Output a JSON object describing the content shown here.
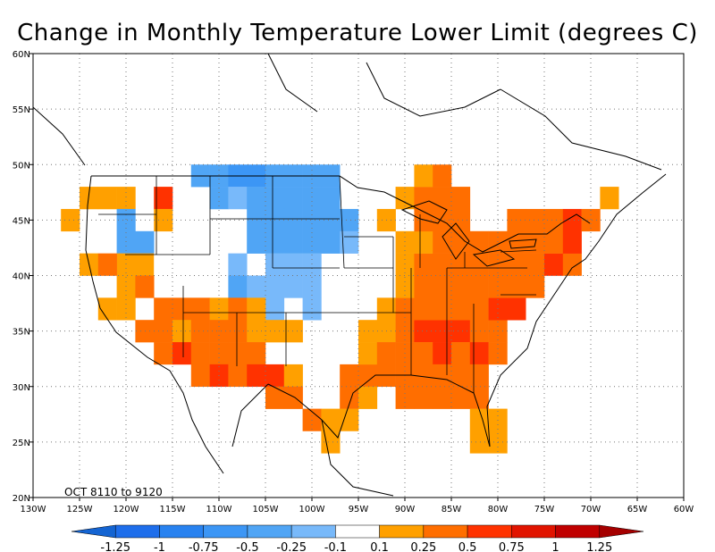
{
  "title": "Change in Monthly Temperature Lower Limit (degrees C)",
  "period_note": "OCT 8110 to 9120",
  "map": {
    "lon_range": [
      -130,
      -60
    ],
    "lat_range": [
      20,
      60
    ],
    "lon_ticks": [
      "130W",
      "125W",
      "120W",
      "115W",
      "110W",
      "105W",
      "100W",
      "95W",
      "90W",
      "85W",
      "80W",
      "75W",
      "70W",
      "65W",
      "60W"
    ],
    "lat_ticks": [
      "20N",
      "25N",
      "30N",
      "35N",
      "40N",
      "45N",
      "50N",
      "55N",
      "60N"
    ],
    "grid": "dotted"
  },
  "colorbar": {
    "labels": [
      "-1.25",
      "-1",
      "-0.75",
      "-0.5",
      "-0.25",
      "-0.1",
      "0.1",
      "0.25",
      "0.5",
      "0.75",
      "1",
      "1.25"
    ],
    "colors": [
      "#1464D2",
      "#1E6EEB",
      "#2882F0",
      "#3C96F5",
      "#50A5F5",
      "#78B9FA",
      "#FFFFFF",
      "#FFA000",
      "#FF6E00",
      "#FF3200",
      "#E11400",
      "#C00000",
      "#A50000"
    ]
  },
  "chart_data": {
    "type": "heatmap",
    "title": "Change in Monthly Temperature Lower Limit (degrees C)",
    "xlabel": "",
    "ylabel": "",
    "xlim": [
      -130,
      -60
    ],
    "ylim": [
      20,
      60
    ],
    "cell_size_deg": 2,
    "colorbar_classes": [
      "-1.25",
      "-1",
      "-0.75",
      "-0.5",
      "-0.25",
      "-0.1",
      "0.1",
      "0.25",
      "0.5",
      "0.75",
      "1",
      "1.25"
    ],
    "cells": [
      {
        "lon": -124,
        "lat": 47,
        "c": 7
      },
      {
        "lon": -122,
        "lat": 47,
        "c": 7
      },
      {
        "lon": -120,
        "lat": 47,
        "c": 7
      },
      {
        "lon": -116,
        "lat": 47,
        "c": 9
      },
      {
        "lon": -126,
        "lat": 45,
        "c": 7
      },
      {
        "lon": -120,
        "lat": 45,
        "c": 4
      },
      {
        "lon": -116,
        "lat": 45,
        "c": 7
      },
      {
        "lon": -120,
        "lat": 43,
        "c": 4
      },
      {
        "lon": -118,
        "lat": 43,
        "c": 4
      },
      {
        "lon": -120,
        "lat": 41,
        "c": 7
      },
      {
        "lon": -118,
        "lat": 41,
        "c": 7
      },
      {
        "lon": -116,
        "lat": 41,
        "c": 6
      },
      {
        "lon": -124,
        "lat": 41,
        "c": 7
      },
      {
        "lon": -122,
        "lat": 41,
        "c": 8
      },
      {
        "lon": -112,
        "lat": 49,
        "c": 4
      },
      {
        "lon": -110,
        "lat": 49,
        "c": 4
      },
      {
        "lon": -108,
        "lat": 49,
        "c": 3
      },
      {
        "lon": -106,
        "lat": 49,
        "c": 3
      },
      {
        "lon": -104,
        "lat": 49,
        "c": 4
      },
      {
        "lon": -102,
        "lat": 49,
        "c": 4
      },
      {
        "lon": -100,
        "lat": 49,
        "c": 4
      },
      {
        "lon": -98,
        "lat": 49,
        "c": 4
      },
      {
        "lon": -110,
        "lat": 47,
        "c": 4
      },
      {
        "lon": -108,
        "lat": 47,
        "c": 5
      },
      {
        "lon": -106,
        "lat": 47,
        "c": 4
      },
      {
        "lon": -104,
        "lat": 47,
        "c": 4
      },
      {
        "lon": -102,
        "lat": 47,
        "c": 4
      },
      {
        "lon": -100,
        "lat": 47,
        "c": 4
      },
      {
        "lon": -98,
        "lat": 47,
        "c": 4
      },
      {
        "lon": -106,
        "lat": 45,
        "c": 4
      },
      {
        "lon": -104,
        "lat": 45,
        "c": 4
      },
      {
        "lon": -102,
        "lat": 45,
        "c": 4
      },
      {
        "lon": -100,
        "lat": 45,
        "c": 4
      },
      {
        "lon": -98,
        "lat": 45,
        "c": 4
      },
      {
        "lon": -96,
        "lat": 45,
        "c": 4
      },
      {
        "lon": -106,
        "lat": 43,
        "c": 4
      },
      {
        "lon": -104,
        "lat": 43,
        "c": 4
      },
      {
        "lon": -102,
        "lat": 43,
        "c": 4
      },
      {
        "lon": -100,
        "lat": 43,
        "c": 4
      },
      {
        "lon": -98,
        "lat": 43,
        "c": 4
      },
      {
        "lon": -96,
        "lat": 43,
        "c": 5
      },
      {
        "lon": -108,
        "lat": 41,
        "c": 5
      },
      {
        "lon": -104,
        "lat": 41,
        "c": 5
      },
      {
        "lon": -102,
        "lat": 41,
        "c": 5
      },
      {
        "lon": -100,
        "lat": 41,
        "c": 5
      },
      {
        "lon": -104,
        "lat": 39,
        "c": 5
      },
      {
        "lon": -102,
        "lat": 39,
        "c": 5
      },
      {
        "lon": -100,
        "lat": 39,
        "c": 5
      },
      {
        "lon": -108,
        "lat": 39,
        "c": 4
      },
      {
        "lon": -106,
        "lat": 39,
        "c": 5
      },
      {
        "lon": -104,
        "lat": 37,
        "c": 5
      },
      {
        "lon": -100,
        "lat": 37,
        "c": 5
      },
      {
        "lon": -112,
        "lat": 37,
        "c": 8
      },
      {
        "lon": -110,
        "lat": 37,
        "c": 7
      },
      {
        "lon": -108,
        "lat": 37,
        "c": 8
      },
      {
        "lon": -106,
        "lat": 37,
        "c": 7
      },
      {
        "lon": -116,
        "lat": 37,
        "c": 8
      },
      {
        "lon": -114,
        "lat": 37,
        "c": 8
      },
      {
        "lon": -120,
        "lat": 39,
        "c": 7
      },
      {
        "lon": -118,
        "lat": 39,
        "c": 8
      },
      {
        "lon": -122,
        "lat": 37,
        "c": 7
      },
      {
        "lon": -120,
        "lat": 37,
        "c": 7
      },
      {
        "lon": -118,
        "lat": 35,
        "c": 8
      },
      {
        "lon": -116,
        "lat": 35,
        "c": 8
      },
      {
        "lon": -114,
        "lat": 35,
        "c": 7
      },
      {
        "lon": -112,
        "lat": 35,
        "c": 8
      },
      {
        "lon": -110,
        "lat": 35,
        "c": 8
      },
      {
        "lon": -108,
        "lat": 35,
        "c": 8
      },
      {
        "lon": -106,
        "lat": 35,
        "c": 7
      },
      {
        "lon": -104,
        "lat": 35,
        "c": 7
      },
      {
        "lon": -102,
        "lat": 35,
        "c": 7
      },
      {
        "lon": -116,
        "lat": 33,
        "c": 8
      },
      {
        "lon": -114,
        "lat": 33,
        "c": 9
      },
      {
        "lon": -112,
        "lat": 33,
        "c": 8
      },
      {
        "lon": -110,
        "lat": 33,
        "c": 8
      },
      {
        "lon": -108,
        "lat": 33,
        "c": 8
      },
      {
        "lon": -106,
        "lat": 33,
        "c": 8
      },
      {
        "lon": -112,
        "lat": 31,
        "c": 8
      },
      {
        "lon": -110,
        "lat": 31,
        "c": 9
      },
      {
        "lon": -108,
        "lat": 31,
        "c": 8
      },
      {
        "lon": -106,
        "lat": 31,
        "c": 9
      },
      {
        "lon": -104,
        "lat": 31,
        "c": 9
      },
      {
        "lon": -102,
        "lat": 31,
        "c": 7
      },
      {
        "lon": -104,
        "lat": 29,
        "c": 8
      },
      {
        "lon": -102,
        "lat": 29,
        "c": 8
      },
      {
        "lon": -100,
        "lat": 27,
        "c": 8
      },
      {
        "lon": -98,
        "lat": 27,
        "c": 7
      },
      {
        "lon": -96,
        "lat": 31,
        "c": 8
      },
      {
        "lon": -94,
        "lat": 31,
        "c": 8
      },
      {
        "lon": -96,
        "lat": 29,
        "c": 8
      },
      {
        "lon": -94,
        "lat": 29,
        "c": 7
      },
      {
        "lon": -96,
        "lat": 27,
        "c": 7
      },
      {
        "lon": -98,
        "lat": 25,
        "c": 7
      },
      {
        "lon": -94,
        "lat": 35,
        "c": 7
      },
      {
        "lon": -92,
        "lat": 35,
        "c": 7
      },
      {
        "lon": -90,
        "lat": 35,
        "c": 8
      },
      {
        "lon": -88,
        "lat": 35,
        "c": 9
      },
      {
        "lon": -86,
        "lat": 35,
        "c": 9
      },
      {
        "lon": -84,
        "lat": 35,
        "c": 9
      },
      {
        "lon": -82,
        "lat": 35,
        "c": 8
      },
      {
        "lon": -80,
        "lat": 35,
        "c": 8
      },
      {
        "lon": -94,
        "lat": 33,
        "c": 7
      },
      {
        "lon": -92,
        "lat": 33,
        "c": 8
      },
      {
        "lon": -90,
        "lat": 33,
        "c": 8
      },
      {
        "lon": -88,
        "lat": 33,
        "c": 8
      },
      {
        "lon": -86,
        "lat": 33,
        "c": 9
      },
      {
        "lon": -84,
        "lat": 33,
        "c": 8
      },
      {
        "lon": -82,
        "lat": 33,
        "c": 9
      },
      {
        "lon": -80,
        "lat": 33,
        "c": 8
      },
      {
        "lon": -92,
        "lat": 31,
        "c": 8
      },
      {
        "lon": -90,
        "lat": 31,
        "c": 8
      },
      {
        "lon": -88,
        "lat": 31,
        "c": 8
      },
      {
        "lon": -86,
        "lat": 31,
        "c": 8
      },
      {
        "lon": -84,
        "lat": 31,
        "c": 8
      },
      {
        "lon": -82,
        "lat": 31,
        "c": 8
      },
      {
        "lon": -90,
        "lat": 29,
        "c": 8
      },
      {
        "lon": -88,
        "lat": 29,
        "c": 8
      },
      {
        "lon": -86,
        "lat": 29,
        "c": 8
      },
      {
        "lon": -84,
        "lat": 29,
        "c": 8
      },
      {
        "lon": -82,
        "lat": 29,
        "c": 8
      },
      {
        "lon": -82,
        "lat": 27,
        "c": 7
      },
      {
        "lon": -80,
        "lat": 27,
        "c": 7
      },
      {
        "lon": -82,
        "lat": 25,
        "c": 7
      },
      {
        "lon": -80,
        "lat": 25,
        "c": 7
      },
      {
        "lon": -92,
        "lat": 37,
        "c": 7
      },
      {
        "lon": -90,
        "lat": 37,
        "c": 8
      },
      {
        "lon": -88,
        "lat": 37,
        "c": 8
      },
      {
        "lon": -86,
        "lat": 37,
        "c": 8
      },
      {
        "lon": -84,
        "lat": 37,
        "c": 8
      },
      {
        "lon": -82,
        "lat": 37,
        "c": 8
      },
      {
        "lon": -80,
        "lat": 37,
        "c": 9
      },
      {
        "lon": -78,
        "lat": 37,
        "c": 9
      },
      {
        "lon": -90,
        "lat": 39,
        "c": 7
      },
      {
        "lon": -88,
        "lat": 39,
        "c": 8
      },
      {
        "lon": -86,
        "lat": 39,
        "c": 8
      },
      {
        "lon": -84,
        "lat": 39,
        "c": 8
      },
      {
        "lon": -82,
        "lat": 39,
        "c": 8
      },
      {
        "lon": -80,
        "lat": 39,
        "c": 8
      },
      {
        "lon": -78,
        "lat": 39,
        "c": 8
      },
      {
        "lon": -76,
        "lat": 39,
        "c": 8
      },
      {
        "lon": -90,
        "lat": 41,
        "c": 7
      },
      {
        "lon": -88,
        "lat": 41,
        "c": 8
      },
      {
        "lon": -86,
        "lat": 41,
        "c": 8
      },
      {
        "lon": -84,
        "lat": 41,
        "c": 8
      },
      {
        "lon": -82,
        "lat": 41,
        "c": 8
      },
      {
        "lon": -80,
        "lat": 41,
        "c": 8
      },
      {
        "lon": -78,
        "lat": 41,
        "c": 8
      },
      {
        "lon": -76,
        "lat": 41,
        "c": 8
      },
      {
        "lon": -74,
        "lat": 41,
        "c": 9
      },
      {
        "lon": -72,
        "lat": 41,
        "c": 8
      },
      {
        "lon": -90,
        "lat": 43,
        "c": 7
      },
      {
        "lon": -88,
        "lat": 43,
        "c": 7
      },
      {
        "lon": -86,
        "lat": 43,
        "c": 8
      },
      {
        "lon": -84,
        "lat": 43,
        "c": 8
      },
      {
        "lon": -82,
        "lat": 43,
        "c": 8
      },
      {
        "lon": -80,
        "lat": 43,
        "c": 8
      },
      {
        "lon": -78,
        "lat": 43,
        "c": 8
      },
      {
        "lon": -76,
        "lat": 43,
        "c": 8
      },
      {
        "lon": -74,
        "lat": 43,
        "c": 8
      },
      {
        "lon": -72,
        "lat": 43,
        "c": 9
      },
      {
        "lon": -92,
        "lat": 45,
        "c": 7
      },
      {
        "lon": -88,
        "lat": 45,
        "c": 8
      },
      {
        "lon": -86,
        "lat": 45,
        "c": 8
      },
      {
        "lon": -84,
        "lat": 45,
        "c": 8
      },
      {
        "lon": -78,
        "lat": 45,
        "c": 8
      },
      {
        "lon": -76,
        "lat": 45,
        "c": 8
      },
      {
        "lon": -74,
        "lat": 45,
        "c": 8
      },
      {
        "lon": -72,
        "lat": 45,
        "c": 9
      },
      {
        "lon": -70,
        "lat": 45,
        "c": 8
      },
      {
        "lon": -90,
        "lat": 47,
        "c": 7
      },
      {
        "lon": -88,
        "lat": 47,
        "c": 8
      },
      {
        "lon": -86,
        "lat": 47,
        "c": 8
      },
      {
        "lon": -84,
        "lat": 47,
        "c": 8
      },
      {
        "lon": -68,
        "lat": 47,
        "c": 7
      },
      {
        "lon": -88,
        "lat": 49,
        "c": 7
      },
      {
        "lon": -86,
        "lat": 49,
        "c": 8
      }
    ]
  }
}
